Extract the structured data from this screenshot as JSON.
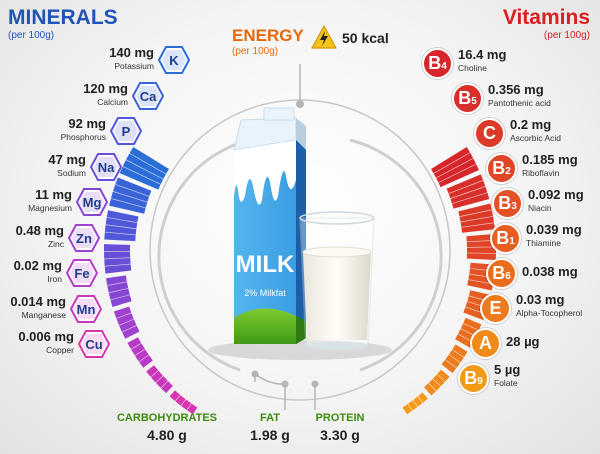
{
  "minerals": {
    "title": "MINERALS",
    "subtitle": "(per 100g)",
    "color": "#1f55b8",
    "items": [
      {
        "symbol": "K",
        "amount": "140 mg",
        "name": "Potassium",
        "color": "#2a6dd6"
      },
      {
        "symbol": "Ca",
        "amount": "120 mg",
        "name": "Calcium",
        "color": "#3a63d8"
      },
      {
        "symbol": "P",
        "amount": "92 mg",
        "name": "Phosphorus",
        "color": "#5058da"
      },
      {
        "symbol": "Na",
        "amount": "47 mg",
        "name": "Sodium",
        "color": "#6a4ed8"
      },
      {
        "symbol": "Mg",
        "amount": "11 mg",
        "name": "Magnesium",
        "color": "#8546d4"
      },
      {
        "symbol": "Zn",
        "amount": "0.48 mg",
        "name": "Zinc",
        "color": "#9f40cf"
      },
      {
        "symbol": "Fe",
        "amount": "0.02 mg",
        "name": "Iron",
        "color": "#b73bc7"
      },
      {
        "symbol": "Mn",
        "amount": "0.014 mg",
        "name": "Manganese",
        "color": "#c937bc"
      },
      {
        "symbol": "Cu",
        "amount": "0.006 mg",
        "name": "Copper",
        "color": "#d935b0"
      }
    ]
  },
  "vitamins": {
    "title": "Vitamins",
    "subtitle": "(per 100g)",
    "color": "#d8201e",
    "items": [
      {
        "label": "B",
        "sub": "4",
        "amount": "16.4 mg",
        "name": "Choline",
        "color": "#d6262c"
      },
      {
        "label": "B",
        "sub": "5",
        "amount": "0.356 mg",
        "name": "Pantothenic acid",
        "color": "#d92f2b"
      },
      {
        "label": "C",
        "sub": "",
        "amount": "0.2 mg",
        "name": "Ascorbic Acid",
        "color": "#dc3a29"
      },
      {
        "label": "B",
        "sub": "2",
        "amount": "0.185 mg",
        "name": "Riboflavin",
        "color": "#e04527"
      },
      {
        "label": "B",
        "sub": "3",
        "amount": "0.092 mg",
        "name": "Niacin",
        "color": "#e35224"
      },
      {
        "label": "B",
        "sub": "1",
        "amount": "0.039 mg",
        "name": "Thiamine",
        "color": "#e65f21"
      },
      {
        "label": "B",
        "sub": "6",
        "amount": "0.038 mg",
        "name": "",
        "color": "#ea6d1e"
      },
      {
        "label": "E",
        "sub": "",
        "amount": "0.03 mg",
        "name": "Alpha-Tocopherol",
        "color": "#ed7a1c"
      },
      {
        "label": "A",
        "sub": "",
        "amount": "28 µg",
        "name": "",
        "color": "#f08a1a"
      },
      {
        "label": "B",
        "sub": "9",
        "amount": "5 µg",
        "name": "Folate",
        "color": "#f39a18"
      }
    ]
  },
  "energy": {
    "title": "ENERGY",
    "subtitle": "(per 100g)",
    "value": "50 kcal",
    "color": "#e46a10",
    "icon": "lightning-icon"
  },
  "macros": [
    {
      "label": "CARBOHYDRATES",
      "value": "4.80 g"
    },
    {
      "label": "FAT",
      "value": "1.98 g"
    },
    {
      "label": "PROTEIN",
      "value": "3.30 g"
    }
  ],
  "carton": {
    "brand": "MILK",
    "fat": "2% Milkfat"
  }
}
